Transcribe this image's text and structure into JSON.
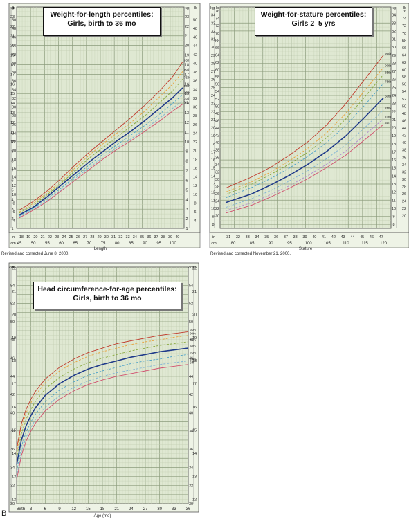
{
  "panel_letter": "B",
  "chart_data": [
    {
      "type": "line",
      "title": "Weight-for-length percentiles:",
      "subtitle": "Girls, birth to 36 mo",
      "xlabel": "Length",
      "note": "Revised and corrected June 8, 2000.",
      "x_unit_primary": "cm",
      "x_unit_secondary": "in",
      "y_unit_left_outer": "kg",
      "y_unit_left_inner": "lb",
      "y_unit_right_inner": "kg",
      "y_unit_right_outer": "lb",
      "xlim": [
        44,
        104
      ],
      "ylim": [
        1,
        24
      ],
      "x_ticks_cm": [
        "45",
        "50",
        "55",
        "60",
        "65",
        "70",
        "75",
        "80",
        "85",
        "90",
        "95",
        "100"
      ],
      "x_ticks_in": [
        "18",
        "19",
        "20",
        "21",
        "22",
        "23",
        "24",
        "25",
        "26",
        "27",
        "28",
        "29",
        "30",
        "31",
        "32",
        "33",
        "34",
        "35",
        "36",
        "37",
        "38",
        "39",
        "40"
      ],
      "y_ticks_kg": [
        "1",
        "2",
        "3",
        "4",
        "5",
        "6",
        "7",
        "8",
        "9",
        "10",
        "11",
        "12",
        "13",
        "14",
        "15",
        "16",
        "17",
        "18",
        "19",
        "20",
        "21",
        "22",
        "23"
      ],
      "y_ticks_lb": [
        "2",
        "4",
        "6",
        "8",
        "10",
        "12",
        "14",
        "16",
        "18",
        "20",
        "22",
        "24",
        "26",
        "28",
        "30",
        "32",
        "34",
        "36",
        "38",
        "40",
        "42",
        "44",
        "46",
        "48",
        "50"
      ],
      "x": [
        45,
        50,
        55,
        60,
        65,
        70,
        75,
        80,
        85,
        90,
        95,
        100,
        103.5
      ],
      "series": [
        {
          "name": "95th",
          "color": "#c0392b",
          "dash": false,
          "values": [
            2.9,
            3.8,
            4.9,
            6.2,
            7.6,
            8.9,
            10.1,
            11.3,
            12.5,
            13.8,
            15.2,
            16.8,
            18.3
          ]
        },
        {
          "name": "90th",
          "color": "#e8a33d",
          "dash": true,
          "values": [
            2.7,
            3.6,
            4.7,
            5.9,
            7.3,
            8.6,
            9.8,
            10.9,
            12.0,
            13.2,
            14.6,
            16.0,
            17.3
          ]
        },
        {
          "name": "75th",
          "color": "#88a83a",
          "dash": true,
          "values": [
            2.6,
            3.4,
            4.5,
            5.7,
            7.0,
            8.3,
            9.4,
            10.5,
            11.6,
            12.7,
            14.0,
            15.3,
            16.5
          ]
        },
        {
          "name": "50th",
          "color": "#1f3a8a",
          "dash": false,
          "values": [
            2.4,
            3.2,
            4.3,
            5.5,
            6.7,
            7.9,
            9.0,
            10.1,
            11.1,
            12.2,
            13.4,
            14.6,
            15.6
          ]
        },
        {
          "name": "25th",
          "color": "#4aa0c8",
          "dash": true,
          "values": [
            2.3,
            3.1,
            4.1,
            5.2,
            6.4,
            7.6,
            8.7,
            9.7,
            10.7,
            11.7,
            12.8,
            14.0,
            14.9
          ]
        },
        {
          "name": "10th",
          "color": "#7fb3d5",
          "dash": true,
          "values": [
            2.2,
            3.0,
            3.9,
            5.0,
            6.2,
            7.3,
            8.4,
            9.4,
            10.3,
            11.3,
            12.4,
            13.5,
            14.3
          ]
        },
        {
          "name": "5th",
          "color": "#d14f6e",
          "dash": false,
          "values": [
            2.1,
            2.9,
            3.8,
            4.9,
            6.0,
            7.1,
            8.2,
            9.2,
            10.1,
            11.1,
            12.1,
            13.2,
            13.9
          ]
        }
      ]
    },
    {
      "type": "line",
      "title": "Weight-for-stature percentiles:",
      "subtitle": "Girls 2–5 yrs",
      "xlabel": "Stature",
      "note": "Revised and corrected November 21, 2000.",
      "x_unit_primary": "cm",
      "x_unit_secondary": "in",
      "y_unit_left_outer": "kg",
      "y_unit_left_inner": "lb",
      "y_unit_right_inner": "kg",
      "y_unit_right_outer": "lb",
      "xlim": [
        76.5,
        122
      ],
      "ylim": [
        7.5,
        35
      ],
      "x_ticks_cm": [
        "80",
        "85",
        "90",
        "95",
        "100",
        "105",
        "110",
        "115",
        "120"
      ],
      "x_ticks_in": [
        "31",
        "32",
        "33",
        "34",
        "35",
        "36",
        "37",
        "38",
        "39",
        "40",
        "41",
        "42",
        "43",
        "44",
        "45",
        "46",
        "47"
      ],
      "y_ticks_kg": [
        "8",
        "9",
        "10",
        "11",
        "12",
        "13",
        "14",
        "15",
        "16",
        "17",
        "18",
        "19",
        "20",
        "21",
        "22",
        "23",
        "24",
        "25",
        "26",
        "27",
        "28",
        "29",
        "30",
        "31",
        "32",
        "33",
        "34"
      ],
      "y_ticks_lb": [
        "20",
        "22",
        "24",
        "26",
        "28",
        "30",
        "32",
        "34",
        "36",
        "38",
        "40",
        "42",
        "44",
        "46",
        "48",
        "50",
        "52",
        "54",
        "56",
        "58",
        "60",
        "62",
        "64",
        "66",
        "68",
        "70",
        "72",
        "74",
        "76"
      ],
      "x": [
        78,
        85,
        90,
        95,
        100,
        105,
        110,
        115,
        120
      ],
      "series": [
        {
          "name": "95th",
          "color": "#c0392b",
          "dash": false,
          "values": [
            12.5,
            13.9,
            15.1,
            16.6,
            18.3,
            20.4,
            23.0,
            26.0,
            29.0
          ]
        },
        {
          "name": "90th",
          "color": "#e8a33d",
          "dash": true,
          "values": [
            12.0,
            13.3,
            14.5,
            15.9,
            17.5,
            19.4,
            21.8,
            24.6,
            27.5
          ]
        },
        {
          "name": "85th",
          "color": "#88a83a",
          "dash": true,
          "values": [
            11.7,
            13.0,
            14.2,
            15.5,
            17.0,
            18.8,
            21.1,
            23.8,
            26.6
          ]
        },
        {
          "name": "75th",
          "color": "#4aa0c8",
          "dash": true,
          "values": [
            11.3,
            12.6,
            13.7,
            15.0,
            16.5,
            18.2,
            20.3,
            22.8,
            25.5
          ]
        },
        {
          "name": "50th",
          "color": "#1f3a8a",
          "dash": false,
          "values": [
            10.7,
            11.8,
            12.9,
            14.1,
            15.5,
            17.1,
            19.0,
            21.3,
            23.7
          ]
        },
        {
          "name": "25th",
          "color": "#7fb3d5",
          "dash": true,
          "values": [
            10.1,
            11.2,
            12.2,
            13.4,
            14.7,
            16.2,
            17.9,
            20.0,
            22.2
          ]
        },
        {
          "name": "10th",
          "color": "#b08bd1",
          "dash": true,
          "values": [
            9.7,
            10.7,
            11.7,
            12.8,
            14.1,
            15.5,
            17.1,
            19.1,
            21.1
          ]
        },
        {
          "name": "5th",
          "color": "#d14f6e",
          "dash": false,
          "values": [
            9.4,
            10.4,
            11.4,
            12.5,
            13.7,
            15.1,
            16.6,
            18.5,
            20.4
          ]
        }
      ]
    },
    {
      "type": "line",
      "title": "Head circumference-for-age percentiles:",
      "subtitle": "Girls, birth to 36 mo",
      "xlabel": "Age (mo)",
      "x_unit_primary": "",
      "y_unit_left_outer": "cm",
      "y_unit_left_inner": "in",
      "y_unit_right_inner": "cm",
      "y_unit_right_outer": "in",
      "xlim": [
        0,
        36
      ],
      "ylim": [
        30,
        56
      ],
      "x_ticks": [
        "Birth",
        "3",
        "6",
        "9",
        "12",
        "15",
        "18",
        "21",
        "24",
        "27",
        "30",
        "33",
        "36"
      ],
      "y_ticks_cm": [
        "30",
        "32",
        "34",
        "36",
        "38",
        "40",
        "42",
        "44",
        "46",
        "48",
        "50",
        "52",
        "54"
      ],
      "y_ticks_in": [
        "12",
        "13",
        "14",
        "15",
        "16",
        "17",
        "18",
        "19",
        "20",
        "21",
        "22"
      ],
      "x": [
        0,
        1,
        2,
        3,
        4,
        6,
        9,
        12,
        15,
        18,
        21,
        24,
        27,
        30,
        33,
        36
      ],
      "series": [
        {
          "name": "95th",
          "color": "#c0392b",
          "dash": false,
          "values": [
            36.0,
            38.8,
            40.4,
            41.5,
            42.4,
            43.7,
            45.0,
            45.9,
            46.6,
            47.1,
            47.6,
            47.9,
            48.2,
            48.5,
            48.7,
            48.9
          ]
        },
        {
          "name": "90th",
          "color": "#e8a33d",
          "dash": true,
          "values": [
            35.6,
            38.4,
            40.0,
            41.1,
            42.0,
            43.3,
            44.6,
            45.5,
            46.2,
            46.7,
            47.1,
            47.5,
            47.8,
            48.0,
            48.3,
            48.5
          ]
        },
        {
          "name": "75th",
          "color": "#88a83a",
          "dash": true,
          "values": [
            35.0,
            37.7,
            39.3,
            40.4,
            41.3,
            42.6,
            43.9,
            44.8,
            45.5,
            46.0,
            46.4,
            46.8,
            47.1,
            47.4,
            47.6,
            47.8
          ]
        },
        {
          "name": "50th",
          "color": "#1f3a8a",
          "dash": false,
          "values": [
            34.3,
            37.0,
            38.6,
            39.7,
            40.6,
            41.9,
            43.2,
            44.1,
            44.8,
            45.3,
            45.7,
            46.1,
            46.4,
            46.7,
            46.9,
            47.1
          ]
        },
        {
          "name": "25th",
          "color": "#4aa0c8",
          "dash": true,
          "values": [
            33.6,
            36.3,
            37.9,
            39.0,
            39.9,
            41.2,
            42.5,
            43.4,
            44.1,
            44.6,
            45.0,
            45.4,
            45.7,
            45.9,
            46.2,
            46.4
          ]
        },
        {
          "name": "10th",
          "color": "#7fb3d5",
          "dash": true,
          "values": [
            33.0,
            35.7,
            37.3,
            38.4,
            39.3,
            40.6,
            41.9,
            42.8,
            43.5,
            44.0,
            44.4,
            44.7,
            45.0,
            45.3,
            45.5,
            45.7
          ]
        },
        {
          "name": "5th",
          "color": "#d14f6e",
          "dash": false,
          "values": [
            32.6,
            35.3,
            36.9,
            38.0,
            38.9,
            40.2,
            41.5,
            42.4,
            43.1,
            43.6,
            44.0,
            44.3,
            44.6,
            44.9,
            45.1,
            45.3
          ]
        }
      ]
    }
  ]
}
